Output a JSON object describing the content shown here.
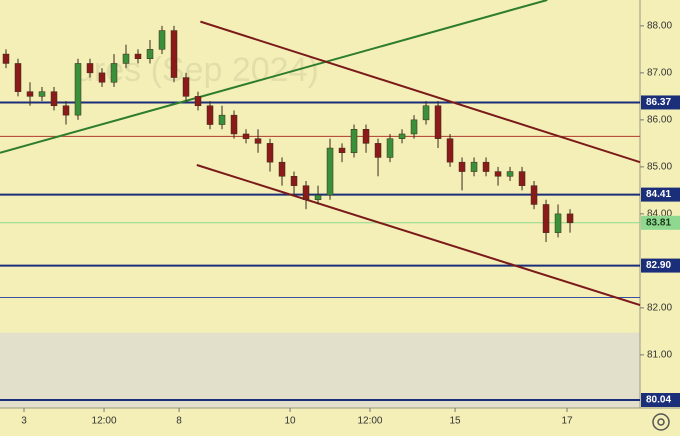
{
  "chart_data": {
    "type": "candlestick",
    "watermark": "ures (Sep 2024)",
    "xlim": [
      0,
      53.33
    ],
    "ylim": [
      79.87,
      88.55
    ],
    "xticks": [
      {
        "value": 2.0,
        "label": "3"
      },
      {
        "value": 8.67,
        "label": "12:00"
      },
      {
        "value": 14.92,
        "label": "8"
      },
      {
        "value": 24.17,
        "label": "10"
      },
      {
        "value": 30.83,
        "label": "12:00"
      },
      {
        "value": 37.92,
        "label": "15"
      },
      {
        "value": 47.25,
        "label": "17"
      }
    ],
    "yticks": [
      {
        "value": 81,
        "label": "81.00"
      },
      {
        "value": 82,
        "label": "82.00"
      },
      {
        "value": 84,
        "label": "84.00"
      },
      {
        "value": 85,
        "label": "85.00"
      },
      {
        "value": 86,
        "label": "86.00"
      },
      {
        "value": 87,
        "label": "87.00"
      },
      {
        "value": 88,
        "label": "88.00"
      }
    ],
    "up_color": "#3a8f3a",
    "down_color": "#8b1a1a",
    "open": [
      87.4,
      87.2,
      86.6,
      86.5,
      86.6,
      86.3,
      86.1,
      87.2,
      87.0,
      86.8,
      87.2,
      87.4,
      87.3,
      87.5,
      87.9,
      86.9,
      86.5,
      86.3,
      85.9,
      86.1,
      85.7,
      85.6,
      85.5,
      85.1,
      84.8,
      84.6,
      84.3,
      84.4,
      85.4,
      85.3,
      85.8,
      85.5,
      85.2,
      85.6,
      85.7,
      86.0,
      86.3,
      85.6,
      85.1,
      84.9,
      85.1,
      84.9,
      84.8,
      84.9,
      84.6,
      84.2,
      83.6,
      84.0
    ],
    "high": [
      87.5,
      87.3,
      86.8,
      86.7,
      86.7,
      86.4,
      87.3,
      87.3,
      87.1,
      87.4,
      87.6,
      87.5,
      87.7,
      88.0,
      88.0,
      87.0,
      86.6,
      86.4,
      86.3,
      86.2,
      85.8,
      85.8,
      85.6,
      85.2,
      84.9,
      84.7,
      84.6,
      85.6,
      85.5,
      85.9,
      85.9,
      85.6,
      85.7,
      85.8,
      86.1,
      86.4,
      86.4,
      85.7,
      85.2,
      85.2,
      85.2,
      85.0,
      85.0,
      85.0,
      84.7,
      84.3,
      84.2,
      84.1
    ],
    "low": [
      87.1,
      86.5,
      86.3,
      86.4,
      86.2,
      85.9,
      86.0,
      86.9,
      86.7,
      86.7,
      87.1,
      87.2,
      87.2,
      87.4,
      86.8,
      86.4,
      86.2,
      85.8,
      85.8,
      85.6,
      85.5,
      85.3,
      84.9,
      84.6,
      84.4,
      84.1,
      84.2,
      84.3,
      85.1,
      85.2,
      85.3,
      84.8,
      85.1,
      85.5,
      85.6,
      85.9,
      85.4,
      85.0,
      84.5,
      84.8,
      84.8,
      84.6,
      84.7,
      84.5,
      84.1,
      83.4,
      83.5,
      83.6
    ],
    "close": [
      87.2,
      86.6,
      86.5,
      86.6,
      86.3,
      86.1,
      87.2,
      87.0,
      86.8,
      87.2,
      87.4,
      87.3,
      87.5,
      87.9,
      86.9,
      86.5,
      86.3,
      85.9,
      86.1,
      85.7,
      85.6,
      85.5,
      85.1,
      84.8,
      84.6,
      84.3,
      84.4,
      85.4,
      85.3,
      85.8,
      85.5,
      85.2,
      85.6,
      85.7,
      86.0,
      86.3,
      85.6,
      85.1,
      84.9,
      85.1,
      84.9,
      84.8,
      84.9,
      84.6,
      84.2,
      83.6,
      84.0,
      83.81
    ],
    "levels": [
      {
        "value": 86.37,
        "label": "86.37",
        "color": "#1a2e7a"
      },
      {
        "value": 84.41,
        "label": "84.41",
        "color": "#1a2e7a"
      },
      {
        "value": 82.9,
        "label": "82.90",
        "color": "#1a2e7a"
      },
      {
        "value": 80.04,
        "label": "80.04",
        "color": "#1a2e7a"
      }
    ],
    "current": {
      "value": 83.81,
      "label": "83.81",
      "color": "#8fd88f"
    },
    "thin_lines": [
      {
        "value": 85.65,
        "color": "#b03a2e"
      },
      {
        "value": 82.22,
        "color": "#3a4fa0"
      }
    ],
    "zone": [
      79.87,
      81.47
    ],
    "trend_lines": [
      {
        "x": [
          0,
          45.6
        ],
        "y": [
          85.3,
          88.55
        ],
        "color": "#2e7d2e"
      },
      {
        "x": [
          16.7,
          53.33
        ],
        "y": [
          88.09,
          85.1
        ],
        "color": "#7a1a1a"
      },
      {
        "x": [
          16.4,
          53.33
        ],
        "y": [
          85.04,
          82.06
        ],
        "color": "#7a1a1a"
      }
    ]
  }
}
